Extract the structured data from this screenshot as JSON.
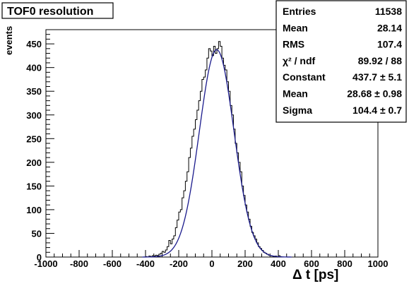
{
  "chart_data": {
    "type": "histogram",
    "title": "TOF0 resolution",
    "xlabel": "Δ t  [ps]",
    "ylabel": "events",
    "xlim": [
      -1000,
      1000
    ],
    "ylim": [
      0,
      480
    ],
    "x_ticks": [
      -1000,
      -800,
      -600,
      -400,
      -200,
      0,
      200,
      400,
      600,
      800,
      1000
    ],
    "y_ticks": [
      0,
      50,
      100,
      150,
      200,
      250,
      300,
      350,
      400,
      450
    ],
    "grid": false,
    "legend": "none",
    "bin_width": 10,
    "histogram_color": "#000000",
    "fit_color": "#1a1a8c",
    "stats_box": {
      "position": "top-right",
      "rows": [
        {
          "label": "Entries",
          "value": "11538"
        },
        {
          "label": "Mean",
          "value": "28.14"
        },
        {
          "label": "RMS",
          "value": "107.4"
        },
        {
          "label": "χ² / ndf",
          "value": "89.92 / 88"
        },
        {
          "label": "Constant",
          "value": "437.7 ± 5.1"
        },
        {
          "label": "Mean",
          "value": "28.68 ± 0.98"
        },
        {
          "label": "Sigma",
          "value": "104.4 ± 0.7"
        }
      ]
    },
    "fit": {
      "function": "gaus",
      "constant": 437.7,
      "mean": 28.68,
      "sigma": 104.4
    },
    "histogram": {
      "bin_centers": [
        -395,
        -385,
        -375,
        -365,
        -355,
        -345,
        -335,
        -325,
        -315,
        -305,
        -295,
        -285,
        -275,
        -265,
        -255,
        -245,
        -235,
        -225,
        -215,
        -205,
        -195,
        -185,
        -175,
        -165,
        -155,
        -145,
        -135,
        -125,
        -115,
        -105,
        -95,
        -85,
        -75,
        -65,
        -55,
        -45,
        -35,
        -25,
        -15,
        -5,
        5,
        15,
        25,
        35,
        45,
        55,
        65,
        75,
        85,
        95,
        105,
        115,
        125,
        135,
        145,
        155,
        165,
        175,
        185,
        195,
        205,
        215,
        225,
        235,
        245,
        255,
        265,
        275,
        285,
        295,
        305,
        315,
        325,
        335,
        345,
        355,
        365,
        375,
        385,
        395,
        405,
        415,
        425
      ],
      "counts": [
        1,
        0,
        2,
        1,
        3,
        2,
        4,
        3,
        6,
        8,
        12,
        10,
        15,
        22,
        35,
        28,
        38,
        45,
        62,
        78,
        95,
        100,
        125,
        140,
        160,
        180,
        210,
        230,
        255,
        270,
        290,
        310,
        330,
        350,
        375,
        380,
        395,
        420,
        440,
        435,
        425,
        445,
        430,
        440,
        455,
        445,
        420,
        405,
        395,
        370,
        350,
        320,
        300,
        270,
        240,
        220,
        200,
        180,
        150,
        130,
        110,
        95,
        80,
        65,
        52,
        45,
        38,
        30,
        22,
        18,
        14,
        10,
        8,
        6,
        4,
        3,
        2,
        1,
        2,
        0,
        3,
        1,
        0
      ]
    }
  }
}
